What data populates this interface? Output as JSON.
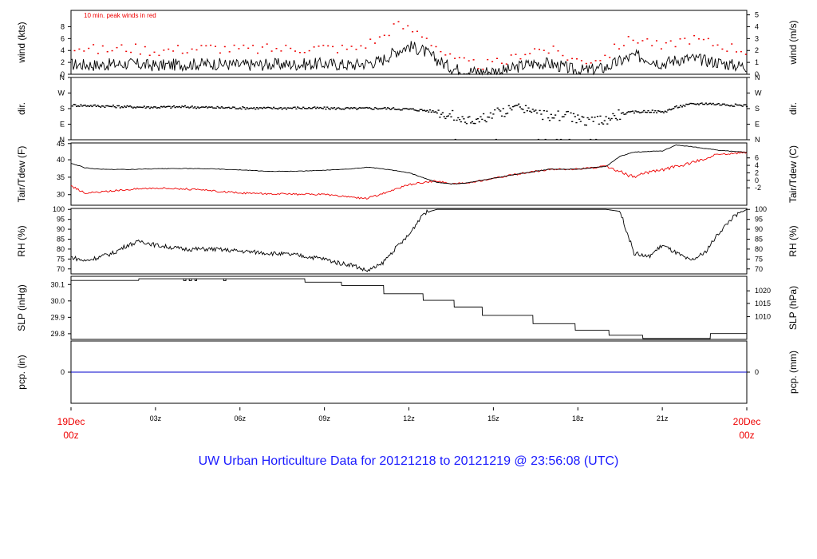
{
  "title": "UW Urban Horticulture Data for 20121218  to  20121219 @ 23:56:08  (UTC)",
  "time_axis": {
    "start_label": [
      "19Dec",
      "00z"
    ],
    "end_label": [
      "20Dec",
      "00z"
    ],
    "ticks": [
      "03z",
      "06z",
      "09z",
      "12z",
      "15z",
      "18z",
      "21z"
    ]
  },
  "colors": {
    "main": "#000000",
    "peak": "#ee0000",
    "dew": "#ee0000",
    "precip": "#0000cc",
    "title": "#1a1aff",
    "end_labels": "#ee0000"
  },
  "chart_data": [
    {
      "id": "wind",
      "type": "line",
      "ylabel_left": "wind (kts)",
      "ylabel_right": "wind (m/s)",
      "annotation": "10 min. peak winds in red",
      "yticks_left": [
        "0",
        "2",
        "4",
        "6",
        "8"
      ],
      "yticks_right": [
        "0",
        "1",
        "2",
        "3",
        "4",
        "5"
      ],
      "ylim": [
        0,
        9.7
      ],
      "series": [
        {
          "values_hours": [
            0,
            1,
            2,
            3,
            4,
            5,
            6,
            7,
            8,
            9,
            10,
            11,
            11.5,
            12,
            12.5,
            13,
            13.5,
            14,
            14.5,
            15,
            15.5,
            16,
            16.5,
            17,
            17.5,
            18,
            18.5,
            19,
            19.5,
            20,
            20.5,
            21,
            21.5,
            22,
            22.5,
            23,
            23.5,
            24
          ],
          "values": [
            1.5,
            1.4,
            1.6,
            1.3,
            1.5,
            1.6,
            1.4,
            1.5,
            1.5,
            1.6,
            1.4,
            2.0,
            3.4,
            4.3,
            3.6,
            2.2,
            1.0,
            0.5,
            0.4,
            0.5,
            0.6,
            1.3,
            1.7,
            1.6,
            1.1,
            0.5,
            0.7,
            1.0,
            2.0,
            2.8,
            2.4,
            1.6,
            2.2,
            2.4,
            2.1,
            1.8,
            1.4,
            1.2
          ]
        },
        {
          "name": "peak",
          "values_hours": [
            0,
            1,
            2,
            3,
            4,
            5,
            6,
            7,
            8,
            9,
            10,
            11,
            11.5,
            12,
            12.5,
            13,
            13.5,
            14,
            14.5,
            15,
            15.5,
            16,
            16.5,
            17,
            17.5,
            18,
            18.5,
            19,
            19.5,
            20,
            20.5,
            21,
            21.5,
            22,
            22.5,
            23,
            23.5,
            24
          ],
          "values": [
            4.2,
            3.6,
            4.0,
            3.5,
            3.8,
            4.0,
            3.7,
            3.8,
            3.9,
            4.0,
            3.8,
            5.5,
            7.5,
            6.8,
            6.0,
            4.0,
            2.2,
            1.6,
            1.4,
            1.5,
            2.0,
            3.2,
            3.8,
            3.6,
            2.8,
            2.0,
            2.2,
            2.8,
            4.6,
            5.4,
            5.0,
            3.8,
            5.0,
            5.4,
            4.9,
            4.4,
            4.0,
            3.5
          ]
        }
      ]
    },
    {
      "id": "dir",
      "type": "scatter",
      "ylabel_left": "dir.",
      "ylabel_right": "dir.",
      "yticks_left": [
        "N",
        "E",
        "S",
        "W",
        "N"
      ],
      "yticks_right": [
        "N",
        "E",
        "S",
        "W",
        "N"
      ],
      "ylim": [
        0,
        360
      ],
      "series": [
        {
          "values_hours": [
            0,
            1,
            2,
            3,
            4,
            5,
            6,
            7,
            8,
            9,
            10,
            11,
            12,
            12.5,
            13,
            13.5,
            14,
            14.5,
            15,
            15.5,
            16,
            16.5,
            17,
            17.5,
            18,
            18.5,
            19,
            19.5,
            20,
            20.5,
            21,
            21.5,
            22,
            22.5,
            23,
            23.5,
            24
          ],
          "values": [
            200,
            195,
            190,
            188,
            190,
            186,
            184,
            182,
            184,
            182,
            180,
            182,
            176,
            170,
            160,
            140,
            110,
            120,
            150,
            170,
            190,
            150,
            140,
            140,
            120,
            100,
            120,
            150,
            160,
            165,
            160,
            190,
            205,
            210,
            205,
            200,
            198
          ]
        }
      ]
    },
    {
      "id": "temp",
      "type": "line",
      "ylabel_left": "Tair/Tdew (F)",
      "ylabel_right": "Tair/Tdew (C)",
      "yticks_left": [
        "30",
        "35",
        "40",
        "45"
      ],
      "yticks_right": [
        "-2",
        "0",
        "2",
        "4",
        "6"
      ],
      "ylim": [
        27.5,
        45.3
      ],
      "series": [
        {
          "name": "Tair",
          "values_hours": [
            0,
            0.5,
            1,
            2,
            3,
            4,
            5,
            6,
            7,
            8,
            9,
            10,
            10.5,
            11,
            12,
            13,
            13.5,
            14,
            15,
            16,
            17,
            18,
            19,
            19.5,
            20,
            21,
            21.5,
            22,
            23,
            24
          ],
          "values": [
            39.5,
            38.2,
            37.8,
            37.7,
            37.9,
            38.0,
            37.9,
            37.6,
            37.2,
            37.2,
            37.5,
            37.9,
            38.4,
            38.0,
            36.8,
            34.0,
            33.6,
            33.8,
            35.2,
            36.6,
            37.8,
            37.8,
            38.6,
            41.5,
            42.7,
            43.0,
            44.7,
            44.3,
            43.2,
            42.6
          ]
        },
        {
          "name": "Tdew",
          "values_hours": [
            0,
            0.5,
            1,
            2,
            3,
            4,
            5,
            6,
            7,
            8,
            9,
            10,
            10.5,
            11,
            11.5,
            12,
            13,
            13.5,
            14,
            15,
            16,
            17,
            18,
            19,
            19.5,
            20,
            20.5,
            21,
            21.5,
            22,
            23,
            24
          ],
          "values": [
            33.0,
            31.0,
            31.2,
            32.0,
            32.5,
            32.2,
            31.6,
            31.0,
            30.8,
            30.6,
            30.6,
            29.7,
            29.4,
            30.6,
            32.0,
            33.4,
            34.5,
            33.6,
            33.8,
            35.2,
            36.6,
            37.8,
            37.8,
            38.6,
            37.0,
            35.5,
            37.0,
            37.6,
            38.6,
            39.5,
            42.0,
            42.6
          ]
        }
      ]
    },
    {
      "id": "rh",
      "type": "line",
      "ylabel_left": "RH (%)",
      "ylabel_right": "RH (%)",
      "yticks_left": [
        "70",
        "75",
        "80",
        "85",
        "90",
        "95",
        "100"
      ],
      "yticks_right": [
        "70",
        "75",
        "80",
        "85",
        "90",
        "95",
        "100"
      ],
      "ylim": [
        67.5,
        100.5
      ],
      "series": [
        {
          "values_hours": [
            0,
            0.5,
            1,
            1.5,
            2,
            2.5,
            3,
            4,
            5,
            6,
            7,
            8,
            8.5,
            9,
            9.5,
            10,
            10.5,
            11,
            11.5,
            12,
            12.5,
            13,
            14,
            15,
            16,
            17,
            18,
            19,
            19.5,
            20,
            20.5,
            21,
            21.5,
            22,
            22.5,
            23,
            23.5,
            24
          ],
          "values": [
            76,
            74,
            76,
            78,
            82,
            84,
            82,
            80,
            80,
            79,
            78,
            77,
            76,
            75,
            73,
            72,
            69,
            72,
            80,
            87,
            98,
            100,
            100,
            100,
            100,
            100,
            100,
            100,
            99,
            78,
            76,
            82,
            78,
            74,
            78,
            88,
            96,
            100
          ]
        }
      ]
    },
    {
      "id": "slp",
      "type": "line",
      "ylabel_left": "SLP (inHg)",
      "ylabel_right": "SLP (hPa)",
      "yticks_left": [
        "29.8",
        "29.9",
        "30.0",
        "30.1"
      ],
      "yticks_right": [
        "1010",
        "1015",
        "1020"
      ],
      "ylim": [
        29.765,
        30.145
      ],
      "series": [
        {
          "values_hours": [
            0,
            2.4,
            2.41,
            4.0,
            4.01,
            5.5,
            5.51,
            8.3,
            8.31,
            9.6,
            9.61,
            11.1,
            11.11,
            12.5,
            12.51,
            13.6,
            13.61,
            14.6,
            14.61,
            16.4,
            16.41,
            17.9,
            17.91,
            19.1,
            19.11,
            20.3,
            20.31,
            22.7,
            22.71,
            24
          ],
          "values": [
            30.12,
            30.12,
            30.13,
            30.13,
            30.13,
            30.13,
            30.13,
            30.13,
            30.11,
            30.11,
            30.09,
            30.09,
            30.04,
            30.04,
            30.0,
            30.0,
            29.96,
            29.96,
            29.91,
            29.91,
            29.86,
            29.86,
            29.82,
            29.82,
            29.79,
            29.79,
            29.77,
            29.77,
            29.8,
            29.8
          ]
        }
      ]
    },
    {
      "id": "pcp",
      "type": "line",
      "ylabel_left": "pcp. (in)",
      "ylabel_right": "pcp. (mm)",
      "yticks_left": [
        "0"
      ],
      "yticks_right": [
        "0"
      ],
      "ylim": [
        -1,
        1
      ],
      "series": [
        {
          "values_hours": [
            0,
            24
          ],
          "values": [
            0,
            0
          ]
        }
      ]
    }
  ]
}
